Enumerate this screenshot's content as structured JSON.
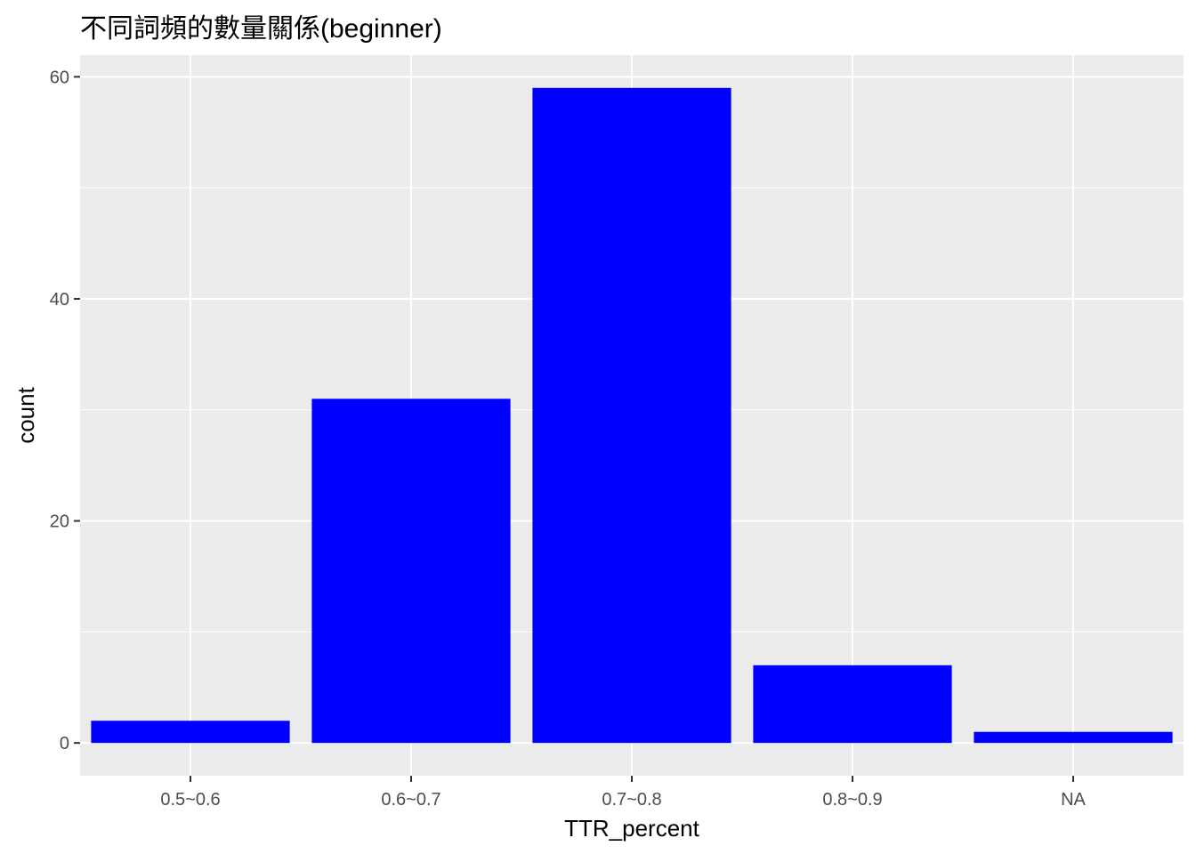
{
  "chart_data": {
    "type": "bar",
    "title": "不同詞頻的數量關係(beginner)",
    "xlabel": "TTR_percent",
    "ylabel": "count",
    "categories": [
      "0.5~0.6",
      "0.6~0.7",
      "0.7~0.8",
      "0.8~0.9",
      "NA"
    ],
    "values": [
      2,
      31,
      59,
      7,
      1
    ],
    "ylim": [
      -2.95,
      61.95
    ],
    "yticks": [
      0,
      20,
      40,
      60
    ],
    "ytick_labels": [
      "0",
      "20",
      "40",
      "60"
    ],
    "grid": true,
    "colors": {
      "bar": "#0000ff",
      "panel_background": "#ebebeb",
      "grid_major": "#ffffff",
      "grid_minor": "#ffffff"
    }
  }
}
